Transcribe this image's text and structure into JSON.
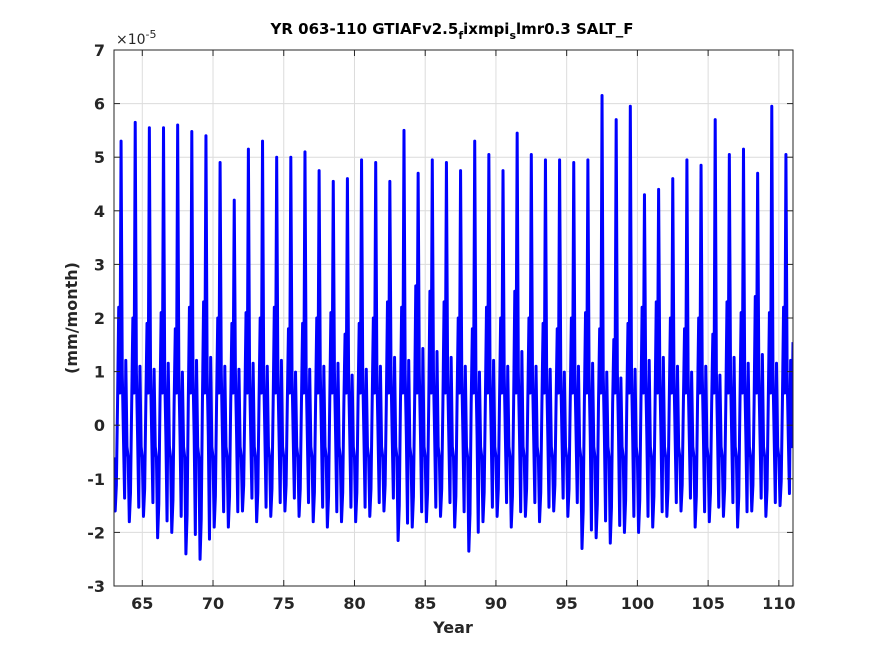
{
  "chart_data": {
    "type": "line",
    "title": {
      "part1": "YR 063-110 GTIAFv2.5",
      "sub1": "f",
      "part2": "ixmpi",
      "sub2": "s",
      "part3": "lmr0.3 SALT_F"
    },
    "xlabel": "Year",
    "ylabel": "(mm/month)",
    "y_exponent_label": {
      "base": "×10",
      "exp": "-5"
    },
    "xlim": [
      63,
      111
    ],
    "ylim": [
      -3,
      7
    ],
    "xticks": [
      65,
      70,
      75,
      80,
      85,
      90,
      95,
      100,
      105,
      110
    ],
    "yticks": [
      -3,
      -2,
      -1,
      0,
      1,
      2,
      3,
      4,
      5,
      6,
      7
    ],
    "grid": true,
    "line_color": "#0000ff",
    "series": [
      {
        "sampling": "monthly",
        "x_start": 63.0,
        "annual_peaks": [
          5.3,
          5.65,
          5.55,
          5.55,
          5.6,
          5.48,
          5.4,
          4.9,
          4.2,
          5.15,
          5.3,
          5.0,
          5.0,
          5.1,
          4.75,
          4.55,
          4.6,
          4.95,
          4.9,
          4.55,
          5.5,
          4.7,
          4.95,
          4.9,
          4.75,
          5.3,
          5.05,
          4.75,
          5.45,
          5.05,
          4.95,
          4.95,
          4.9,
          4.95,
          6.15,
          5.7,
          5.95,
          4.3,
          4.4,
          4.6,
          4.95,
          4.85,
          5.7,
          5.05,
          5.15,
          4.7,
          5.95,
          5.05
        ],
        "annual_minima": [
          -1.6,
          -1.8,
          -1.7,
          -2.1,
          -2.0,
          -2.4,
          -2.5,
          -1.9,
          -1.9,
          -1.6,
          -1.8,
          -1.7,
          -1.6,
          -1.7,
          -1.8,
          -1.9,
          -1.8,
          -1.8,
          -1.7,
          -1.6,
          -2.15,
          -1.9,
          -1.8,
          -1.7,
          -1.9,
          -2.35,
          -1.8,
          -1.7,
          -1.9,
          -1.7,
          -1.8,
          -1.6,
          -1.7,
          -2.3,
          -2.1,
          -2.2,
          -2.0,
          -2.0,
          -1.9,
          -1.7,
          -1.6,
          -1.9,
          -1.8,
          -1.7,
          -1.9,
          -1.6,
          -1.7,
          -1.5
        ],
        "secondary_peaks": [
          2.2,
          2.0,
          1.9,
          2.1,
          1.8,
          2.2,
          2.3,
          2.0,
          1.9,
          2.1,
          2.0,
          2.2,
          1.8,
          1.9,
          2.0,
          2.1,
          1.7,
          1.9,
          2.0,
          2.3,
          2.2,
          2.6,
          2.5,
          2.3,
          2.0,
          1.8,
          2.2,
          2.0,
          2.5,
          2.0,
          1.9,
          1.8,
          2.0,
          2.1,
          1.8,
          1.6,
          1.9,
          2.2,
          2.3,
          2.0,
          1.8,
          2.0,
          1.7,
          2.3,
          2.1,
          2.4,
          2.1,
          2.2
        ],
        "x_end": 111.0
      }
    ]
  }
}
